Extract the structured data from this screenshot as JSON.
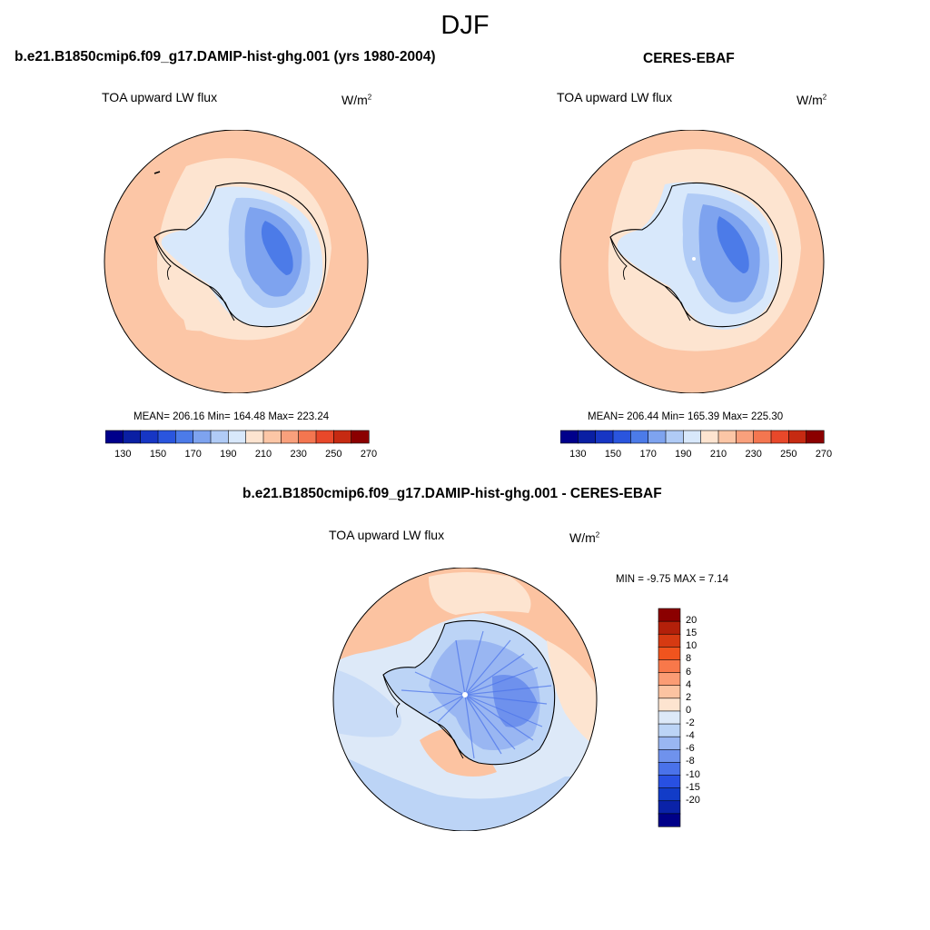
{
  "season": "DJF",
  "top_left": {
    "title": "b.e21.B1850cmip6.f09_g17.DAMIP-hist-ghg.001 (yrs 1980-2004)",
    "variable": "TOA upward LW flux",
    "units": "W/m",
    "units_exp": "2",
    "stats": "MEAN= 206.16  Min= 164.48  Max= 223.24"
  },
  "top_right": {
    "title": "CERES-EBAF",
    "variable": "TOA upward LW flux",
    "units": "W/m",
    "units_exp": "2",
    "stats": "MEAN= 206.44  Min= 165.39  Max= 225.30"
  },
  "bottom": {
    "title": "b.e21.B1850cmip6.f09_g17.DAMIP-hist-ghg.001 - CERES-EBAF",
    "variable": "TOA upward LW flux",
    "units": "W/m",
    "units_exp": "2",
    "stats": "MIN =  -9.75 MAX =   7.14"
  },
  "colorbar_main": {
    "colors": [
      "#00008b",
      "#0a1fa3",
      "#1736c4",
      "#2a55de",
      "#4c7be8",
      "#7ea3ef",
      "#b0cbf6",
      "#d8e8fb",
      "#fde4d0",
      "#fcc6a6",
      "#f9a07c",
      "#f47650",
      "#e8482a",
      "#c62a12",
      "#8b0000"
    ],
    "ticks": [
      "130",
      "150",
      "170",
      "190",
      "210",
      "230",
      "250",
      "270"
    ]
  },
  "colorbar_diff": {
    "colors": [
      "#8b0000",
      "#b3200a",
      "#d63a12",
      "#f0541e",
      "#f8784a",
      "#fb9c74",
      "#fcc3a1",
      "#fde4d0",
      "#dde9f8",
      "#bcd4f6",
      "#99b6f2",
      "#6f92ed",
      "#4a72ea",
      "#2850e2",
      "#123cc8",
      "#0a22a8",
      "#000088"
    ],
    "ticks": [
      "20",
      "15",
      "10",
      "8",
      "6",
      "4",
      "2",
      "0",
      "-2",
      "-4",
      "-6",
      "-8",
      "-10",
      "-15",
      "-20"
    ]
  },
  "chart_data": [
    {
      "type": "heatmap",
      "title": "b.e21.B1850cmip6.f09_g17.DAMIP-hist-ghg.001 (yrs 1980-2004)",
      "variable": "TOA upward LW flux",
      "units": "W/m2",
      "stats": {
        "mean": 206.16,
        "min": 164.48,
        "max": 223.24
      },
      "contour_levels": [
        130,
        140,
        150,
        160,
        170,
        180,
        190,
        200,
        210,
        220,
        230,
        240,
        250,
        260,
        270
      ]
    },
    {
      "type": "heatmap",
      "title": "CERES-EBAF",
      "variable": "TOA upward LW flux",
      "units": "W/m2",
      "stats": {
        "mean": 206.44,
        "min": 165.39,
        "max": 225.3
      },
      "contour_levels": [
        130,
        140,
        150,
        160,
        170,
        180,
        190,
        200,
        210,
        220,
        230,
        240,
        250,
        260,
        270
      ]
    },
    {
      "type": "heatmap",
      "title": "b.e21.B1850cmip6.f09_g17.DAMIP-hist-ghg.001 - CERES-EBAF",
      "variable": "TOA upward LW flux",
      "units": "W/m2",
      "stats": {
        "min": -9.75,
        "max": 7.14
      },
      "contour_levels": [
        -20,
        -15,
        -10,
        -8,
        -6,
        -4,
        -2,
        0,
        2,
        4,
        6,
        8,
        10,
        15,
        20
      ]
    }
  ]
}
